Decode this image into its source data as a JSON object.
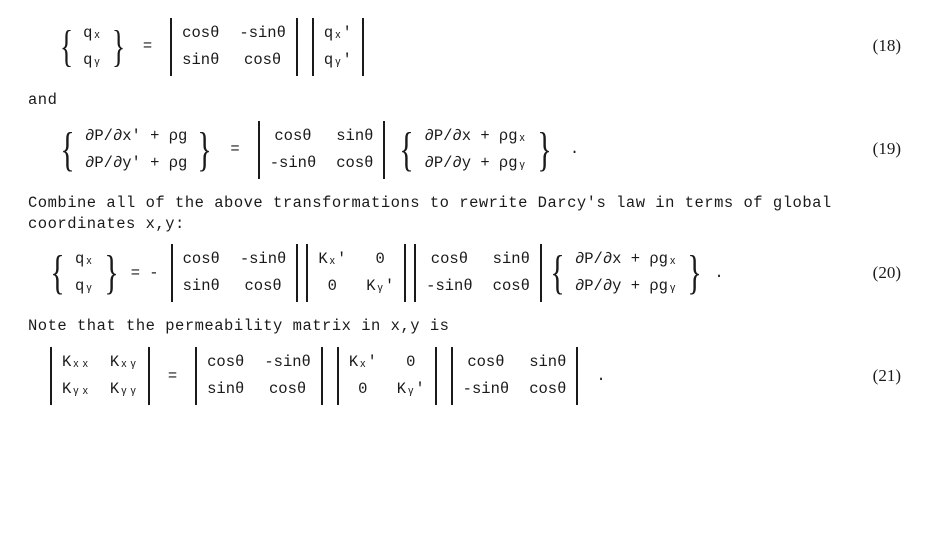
{
  "font": {
    "family": "Courier New, monospace",
    "size_pt": 12,
    "eqnum_family": "Georgia, serif",
    "color": "#1a1a1a"
  },
  "background_color": "#ffffff",
  "eq18": {
    "lhs": [
      "qₓ",
      "qᵧ"
    ],
    "rot": {
      "r1c1": "cosθ",
      "r1c2": "-sinθ",
      "r2c1": "sinθ",
      "r2c2": "cosθ"
    },
    "rhs": [
      "qₓ'",
      "qᵧ'"
    ],
    "number": "(18)"
  },
  "and_text": "and",
  "eq19": {
    "lhs": [
      "∂P/∂x' + ρg",
      "∂P/∂y' + ρg"
    ],
    "rot": {
      "r1c1": "cosθ",
      "r1c2": "sinθ",
      "r2c1": "-sinθ",
      "r2c2": "cosθ"
    },
    "rhs": [
      "∂P/∂x + ρgₓ",
      "∂P/∂y + ρgᵧ"
    ],
    "tail": ".",
    "number": "(19)"
  },
  "para1": "Combine all of the above transformations to rewrite Darcy's law in terms of global coordinates x,y:",
  "eq20": {
    "lhs": [
      "qₓ",
      "qᵧ"
    ],
    "sign": "= -",
    "rot1": {
      "r1c1": "cosθ",
      "r1c2": "-sinθ",
      "r2c1": "sinθ",
      "r2c2": "cosθ"
    },
    "K": {
      "r1c1": "Kₓ'",
      "r1c2": "0",
      "r2c1": "0",
      "r2c2": "Kᵧ'"
    },
    "rot2": {
      "r1c1": "cosθ",
      "r1c2": "sinθ",
      "r2c1": "-sinθ",
      "r2c2": "cosθ"
    },
    "rhs": [
      "∂P/∂x + ρgₓ",
      "∂P/∂y + ρgᵧ"
    ],
    "tail": ".",
    "number": "(20)"
  },
  "para2": "Note that the permeability matrix in x,y is",
  "eq21": {
    "lhs": {
      "r1c1": "Kₓₓ",
      "r1c2": "Kₓᵧ",
      "r2c1": "Kᵧₓ",
      "r2c2": "Kᵧᵧ"
    },
    "rot1": {
      "r1c1": "cosθ",
      "r1c2": "-sinθ",
      "r2c1": "sinθ",
      "r2c2": "cosθ"
    },
    "K": {
      "r1c1": "Kₓ'",
      "r1c2": "0",
      "r2c1": "0",
      "r2c2": "Kᵧ'"
    },
    "rot2": {
      "r1c1": "cosθ",
      "r1c2": "sinθ",
      "r2c1": "-sinθ",
      "r2c2": "cosθ"
    },
    "tail": ".",
    "number": "(21)"
  }
}
